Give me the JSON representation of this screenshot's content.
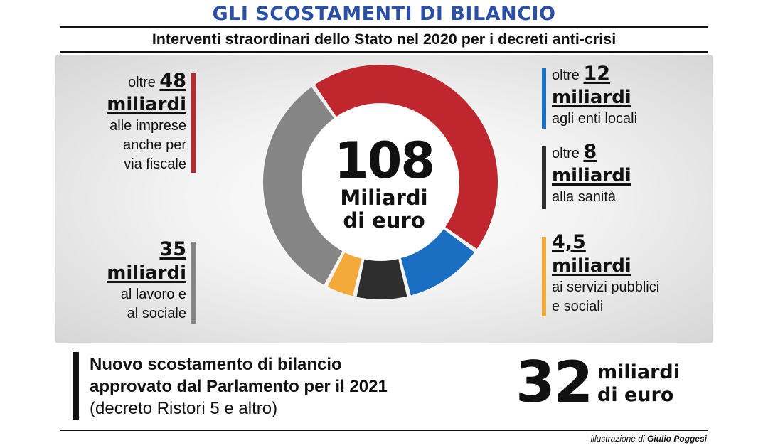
{
  "header": {
    "title": "GLI SCOSTAMENTI DI BILANCIO",
    "subtitle": "Interventi straordinari dello Stato nel 2020 per i decreti anti-crisi"
  },
  "chart_data": {
    "type": "pie",
    "total": {
      "value": "108",
      "unit_line1": "Miliardi",
      "unit_line2": "di euro"
    },
    "slices": [
      {
        "name": "imprese",
        "value": 48,
        "color": "#c0262d"
      },
      {
        "name": "enti locali",
        "value": 12,
        "color": "#1a6fc2"
      },
      {
        "name": "sanità",
        "value": 8,
        "color": "#2e2e2e"
      },
      {
        "name": "servizi pubblici e sociali",
        "value": 4.5,
        "color": "#f4a93b"
      },
      {
        "name": "lavoro e sociale",
        "value": 35,
        "color": "#858585"
      }
    ],
    "labels": {
      "imprese": {
        "prefix": "oltre ",
        "value": "48",
        "unit": "miliardi",
        "lines": [
          "alle imprese",
          "anche per",
          "via fiscale"
        ]
      },
      "lavoro": {
        "value": "35",
        "unit": "miliardi",
        "lines": [
          "al lavoro e",
          "al sociale"
        ]
      },
      "enti": {
        "prefix": "oltre ",
        "value": "12",
        "unit": "miliardi",
        "lines": [
          "agli enti locali"
        ]
      },
      "sanita": {
        "prefix": "oltre ",
        "value": "8",
        "unit": "miliardi",
        "lines": [
          "alla sanità"
        ]
      },
      "servizi": {
        "value": "4,5",
        "unit": "miliardi",
        "lines": [
          "ai servizi pubblici",
          "e sociali"
        ]
      }
    }
  },
  "footer": {
    "line1": "Nuovo scostamento di bilancio",
    "line2": "approvato dal Parlamento per il 2021",
    "line3": "(decreto Ristori 5 e altro)",
    "amount": "32",
    "amount_unit1": "miliardi",
    "amount_unit2": "di euro",
    "credit_prefix": "illustrazione di ",
    "credit_author": "Giulio Poggesi"
  }
}
